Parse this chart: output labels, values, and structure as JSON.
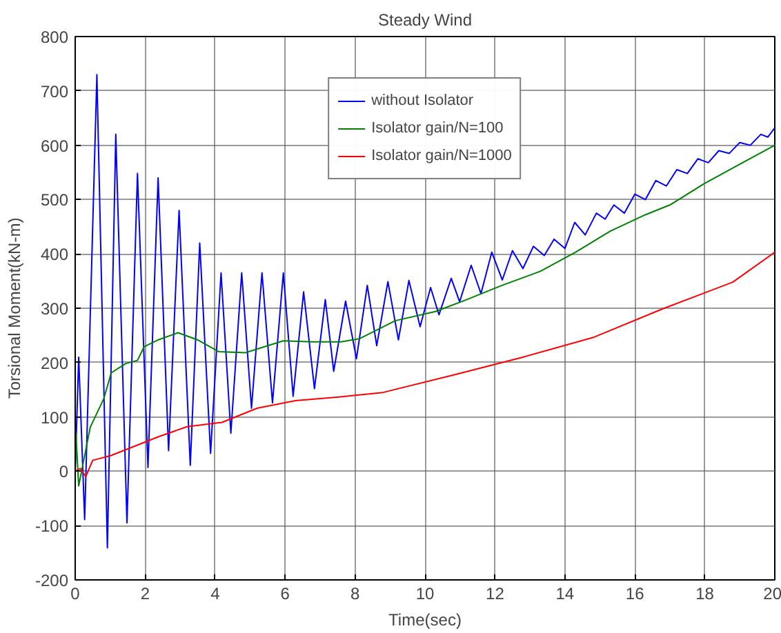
{
  "chart_data": {
    "type": "line",
    "title": "Steady Wind",
    "xlabel": "Time(sec)",
    "ylabel": "Torsional Moment(kN-m)",
    "xlim": [
      0,
      20
    ],
    "ylim": [
      -200,
      800
    ],
    "xticks": [
      0,
      2,
      4,
      6,
      8,
      10,
      12,
      14,
      16,
      18,
      20
    ],
    "yticks": [
      -200,
      -100,
      0,
      100,
      200,
      300,
      400,
      500,
      600,
      700,
      800
    ],
    "grid": true,
    "legend": "top",
    "line_style": "solid",
    "series": [
      {
        "name": "without Isolator",
        "color": "#0000ff",
        "x": [
          0,
          0.1,
          0.27,
          0.62,
          0.92,
          1.16,
          1.48,
          1.78,
          2.08,
          2.37,
          2.67,
          2.97,
          3.29,
          3.56,
          3.87,
          4.17,
          4.45,
          4.76,
          5.04,
          5.34,
          5.64,
          5.95,
          6.23,
          6.53,
          6.84,
          7.15,
          7.39,
          7.73,
          8.04,
          8.35,
          8.62,
          8.94,
          9.24,
          9.54,
          9.86,
          10.16,
          10.4,
          10.75,
          10.99,
          11.32,
          11.6,
          11.91,
          12.21,
          12.5,
          12.8,
          13.1,
          13.41,
          13.69,
          14.0,
          14.28,
          14.58,
          14.9,
          15.15,
          15.4,
          15.7,
          16.0,
          16.3,
          16.6,
          16.9,
          17.2,
          17.5,
          17.8,
          18.1,
          18.4,
          18.7,
          19.0,
          19.3,
          19.6,
          19.8,
          20
        ],
        "values": [
          0,
          210,
          -89,
          730,
          -141,
          620,
          -95,
          548,
          7,
          540,
          38,
          480,
          11,
          420,
          33,
          365,
          70,
          365,
          116,
          365,
          126,
          365,
          138,
          330,
          152,
          316,
          184,
          313,
          207,
          342,
          231,
          349,
          242,
          351,
          266,
          338,
          288,
          355,
          312,
          379,
          327,
          403,
          352,
          406,
          373,
          414,
          397,
          427,
          410,
          458,
          435,
          475,
          464,
          490,
          475,
          510,
          500,
          535,
          525,
          555,
          548,
          575,
          568,
          590,
          585,
          605,
          600,
          620,
          615,
          632
        ]
      },
      {
        "name": "Isolator gain/N=100",
        "color": "#008000",
        "x": [
          0,
          0.02,
          0.1,
          0.43,
          0.82,
          1.03,
          1.44,
          1.78,
          1.97,
          2.38,
          2.94,
          3.49,
          4.11,
          4.86,
          5.4,
          5.95,
          6.77,
          7.6,
          8.13,
          9.15,
          10.3,
          11.2,
          12.2,
          13.3,
          14.3,
          15.3,
          16.3,
          17.0,
          18.0,
          19.0,
          20.0
        ],
        "values": [
          0,
          70,
          -27,
          81,
          134,
          181,
          198,
          204,
          229,
          242,
          255,
          242,
          220,
          218,
          229,
          240,
          238,
          238,
          244,
          277,
          294,
          316,
          342,
          368,
          403,
          442,
          472,
          490,
          530,
          565,
          600
        ]
      },
      {
        "name": "Isolator gain/N=1000",
        "color": "#ff0000",
        "x": [
          0,
          0.15,
          0.3,
          0.5,
          1.03,
          2.4,
          3.2,
          4.2,
          5.2,
          6.3,
          7.6,
          8.8,
          10.8,
          12.8,
          14.8,
          16.8,
          18.8,
          20.0
        ],
        "values": [
          0,
          5,
          -10,
          20,
          29,
          64,
          82,
          90,
          116,
          130,
          137,
          145,
          177,
          210,
          246,
          299,
          348,
          403
        ]
      }
    ]
  }
}
